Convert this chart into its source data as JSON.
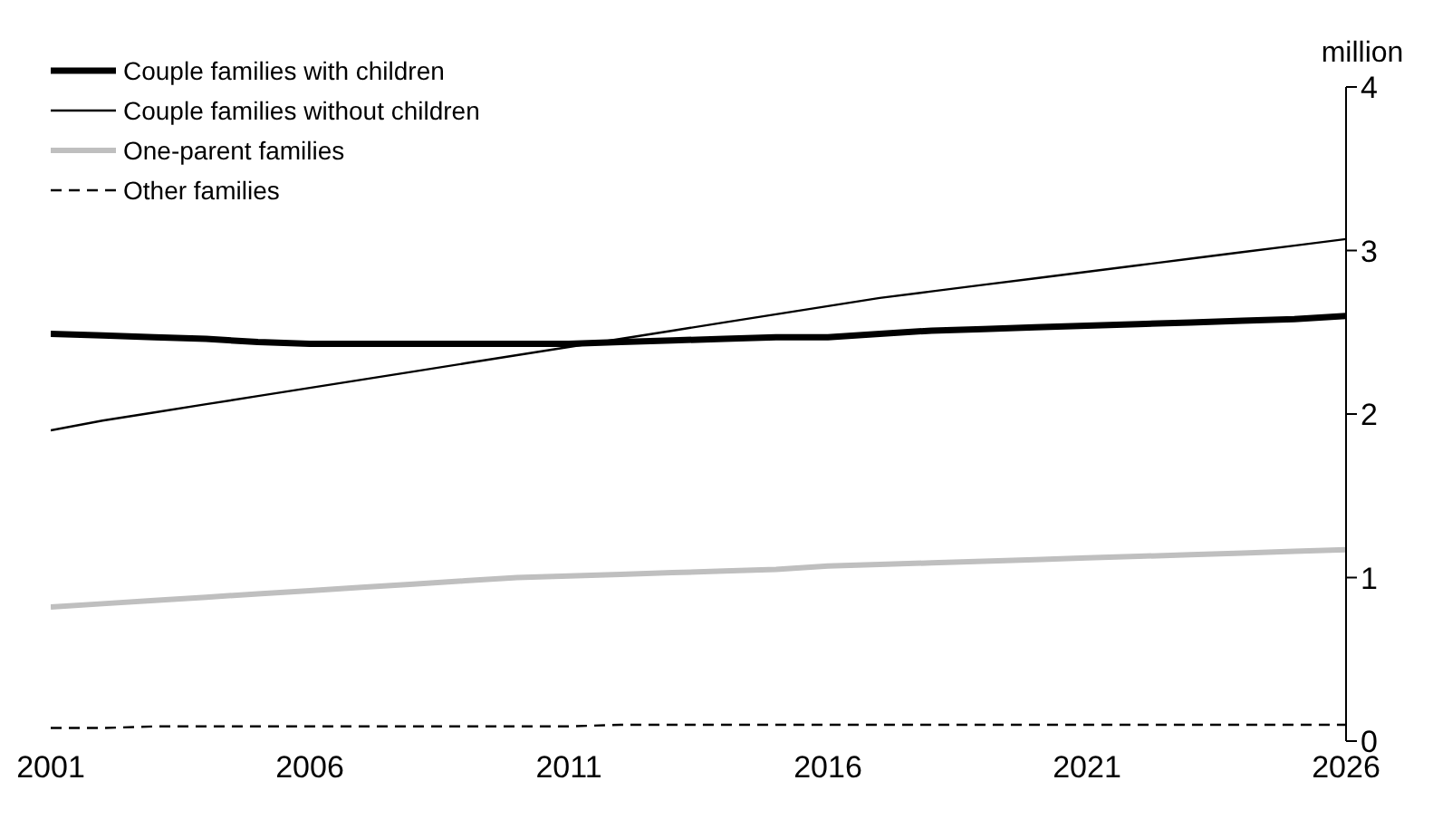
{
  "chart_data": {
    "type": "line",
    "ylabel": "million",
    "x": [
      2001,
      2002,
      2003,
      2004,
      2005,
      2006,
      2007,
      2008,
      2009,
      2010,
      2011,
      2012,
      2013,
      2014,
      2015,
      2016,
      2017,
      2018,
      2019,
      2020,
      2021,
      2022,
      2023,
      2024,
      2025,
      2026
    ],
    "series": [
      {
        "name": "Couple families with children",
        "color": "#000000",
        "line_style": "solid",
        "values": [
          2.49,
          2.48,
          2.47,
          2.46,
          2.44,
          2.43,
          2.43,
          2.43,
          2.43,
          2.43,
          2.43,
          2.44,
          2.45,
          2.46,
          2.47,
          2.47,
          2.49,
          2.51,
          2.52,
          2.53,
          2.54,
          2.55,
          2.56,
          2.57,
          2.58,
          2.6
        ]
      },
      {
        "name": "Couple families without children",
        "color": "#000000",
        "line_style": "solid",
        "values": [
          1.9,
          1.96,
          2.01,
          2.06,
          2.11,
          2.16,
          2.21,
          2.26,
          2.31,
          2.36,
          2.41,
          2.46,
          2.51,
          2.56,
          2.61,
          2.66,
          2.71,
          2.75,
          2.79,
          2.83,
          2.87,
          2.91,
          2.95,
          2.99,
          3.03,
          3.07
        ]
      },
      {
        "name": "One-parent families",
        "color": "#bfbfbf",
        "line_style": "solid",
        "values": [
          0.82,
          0.84,
          0.86,
          0.88,
          0.9,
          0.92,
          0.94,
          0.96,
          0.98,
          1.0,
          1.01,
          1.02,
          1.03,
          1.04,
          1.05,
          1.07,
          1.08,
          1.09,
          1.1,
          1.11,
          1.12,
          1.13,
          1.14,
          1.15,
          1.16,
          1.17
        ]
      },
      {
        "name": "Other families",
        "color": "#000000",
        "line_style": "dashed",
        "values": [
          0.08,
          0.08,
          0.09,
          0.09,
          0.09,
          0.09,
          0.09,
          0.09,
          0.09,
          0.09,
          0.09,
          0.1,
          0.1,
          0.1,
          0.1,
          0.1,
          0.1,
          0.1,
          0.1,
          0.1,
          0.1,
          0.1,
          0.1,
          0.1,
          0.1,
          0.1
        ]
      }
    ],
    "xlim": [
      2001,
      2026
    ],
    "xticks": [
      2001,
      2006,
      2011,
      2016,
      2021,
      2026
    ],
    "ylim": [
      0,
      4
    ],
    "yticks": [
      0,
      1,
      2,
      3,
      4
    ],
    "grid": false,
    "legend": "top left",
    "marker": "none"
  }
}
